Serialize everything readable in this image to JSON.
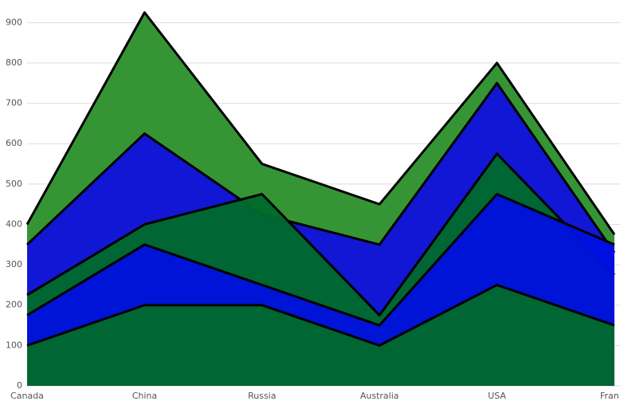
{
  "chart_data": {
    "type": "area",
    "categories": [
      "Canada",
      "China",
      "Russia",
      "Australia",
      "USA",
      "Fran"
    ],
    "series": [
      {
        "color": "#2a8f2a",
        "values": [
          400,
          925,
          550,
          450,
          800,
          375
        ]
      },
      {
        "color": "#1010dd",
        "values": [
          350,
          625,
          425,
          350,
          750,
          330
        ]
      },
      {
        "color": "#006a2a",
        "values": [
          225,
          400,
          475,
          175,
          575,
          275
        ]
      },
      {
        "color": "#0010e0",
        "values": [
          175,
          350,
          250,
          150,
          475,
          350
        ]
      },
      {
        "color": "#006a2a",
        "values": [
          100,
          200,
          200,
          100,
          250,
          150
        ]
      }
    ],
    "ylim": [
      0,
      950
    ],
    "yticks": [
      0,
      100,
      200,
      300,
      400,
      500,
      600,
      700,
      800,
      900
    ],
    "grid": true
  }
}
